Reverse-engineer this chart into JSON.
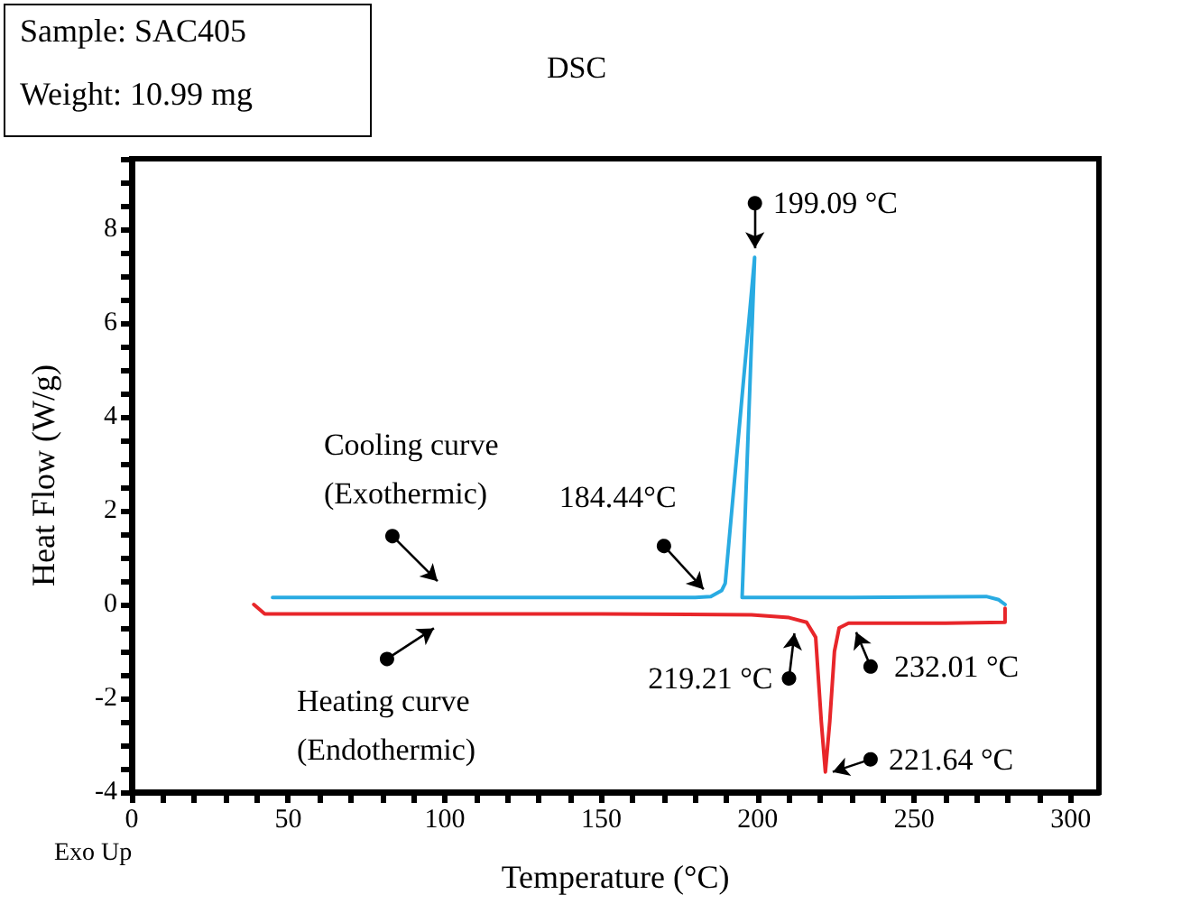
{
  "chart_data": {
    "type": "line",
    "title": "DSC",
    "xlabel": "Temperature (°C)",
    "ylabel": "Heat Flow (W/g)",
    "xlim": [
      0,
      309
    ],
    "ylim": [
      -4,
      9.5
    ],
    "xticks": [
      0,
      {
        "value": 10,
        "label": null
      },
      {
        "value": 20,
        "label": null
      },
      {
        "value": 30,
        "label": null
      },
      {
        "value": 40,
        "label": null
      },
      50,
      {
        "value": 60,
        "label": null
      },
      {
        "value": 70,
        "label": null
      },
      {
        "value": 80,
        "label": null
      },
      {
        "value": 90,
        "label": null
      },
      100,
      {
        "value": 110,
        "label": null
      },
      {
        "value": 120,
        "label": null
      },
      {
        "value": 130,
        "label": null
      },
      {
        "value": 140,
        "label": null
      },
      150,
      {
        "value": 160,
        "label": null
      },
      {
        "value": 170,
        "label": null
      },
      {
        "value": 180,
        "label": null
      },
      {
        "value": 190,
        "label": null
      },
      200,
      {
        "value": 210,
        "label": null
      },
      {
        "value": 220,
        "label": null
      },
      {
        "value": 230,
        "label": null
      },
      {
        "value": 240,
        "label": null
      },
      250,
      {
        "value": 260,
        "label": null
      },
      {
        "value": 270,
        "label": null
      },
      {
        "value": 280,
        "label": null
      },
      {
        "value": 290,
        "label": null
      },
      300
    ],
    "yticks": [
      -4,
      {
        "value": -3.5,
        "label": null
      },
      {
        "value": -3,
        "label": null
      },
      {
        "value": -2.5,
        "label": null
      },
      -2,
      {
        "value": -1.5,
        "label": null
      },
      {
        "value": -1,
        "label": null
      },
      {
        "value": -0.5,
        "label": null
      },
      0,
      {
        "value": 0.5,
        "label": null
      },
      {
        "value": 1,
        "label": null
      },
      {
        "value": 1.5,
        "label": null
      },
      2,
      {
        "value": 2.5,
        "label": null
      },
      {
        "value": 3,
        "label": null
      },
      {
        "value": 3.5,
        "label": null
      },
      4,
      {
        "value": 4.5,
        "label": null
      },
      {
        "value": 5,
        "label": null
      },
      {
        "value": 5.5,
        "label": null
      },
      6,
      {
        "value": 6.5,
        "label": null
      },
      {
        "value": 7,
        "label": null
      },
      {
        "value": 7.5,
        "label": null
      },
      8,
      {
        "value": 8.5,
        "label": null
      },
      {
        "value": 9,
        "label": null
      },
      {
        "value": 9.5,
        "label": null
      }
    ],
    "series": [
      {
        "name": "Cooling curve (Exothermic)",
        "color": "#29abe2",
        "x": [
          45,
          100,
          150,
          180,
          185,
          188.5,
          189.6,
          199,
          195,
          230,
          273,
          277,
          279
        ],
        "values": [
          0.15,
          0.15,
          0.15,
          0.15,
          0.17,
          0.3,
          0.45,
          7.4,
          0.15,
          0.15,
          0.17,
          0.1,
          0
        ]
      },
      {
        "name": "Heating curve (Endothermic)",
        "color": "#e8262a",
        "x": [
          39,
          42.5,
          100,
          150,
          198,
          210,
          215.6,
          218.5,
          220.3,
          221.6,
          223,
          224.5,
          226,
          229,
          240,
          260,
          279,
          279
        ],
        "values": [
          0,
          -0.2,
          -0.2,
          -0.2,
          -0.22,
          -0.28,
          -0.38,
          -0.7,
          -2.5,
          -3.57,
          -2.5,
          -1,
          -0.5,
          -0.4,
          -0.4,
          -0.4,
          -0.38,
          -0.08
        ]
      }
    ],
    "annotations": [
      "Sample: SAC405",
      "Weight: 10.99 mg",
      "Exo Up",
      {
        "text": "184.44°C",
        "x": 184.44,
        "y": 0.17
      },
      {
        "text": "199.09 °C",
        "x": 199.09,
        "y": 7.4
      },
      {
        "text": "219.21 °C",
        "x": 219.21,
        "y": -0.5
      },
      {
        "text": "232.01 °C",
        "x": 232.01,
        "y": -0.4
      },
      {
        "text": "221.64 °C",
        "x": 221.64,
        "y": -3.57
      }
    ],
    "legend": false,
    "grid": false,
    "marker": "none",
    "line_style": "solid"
  }
}
